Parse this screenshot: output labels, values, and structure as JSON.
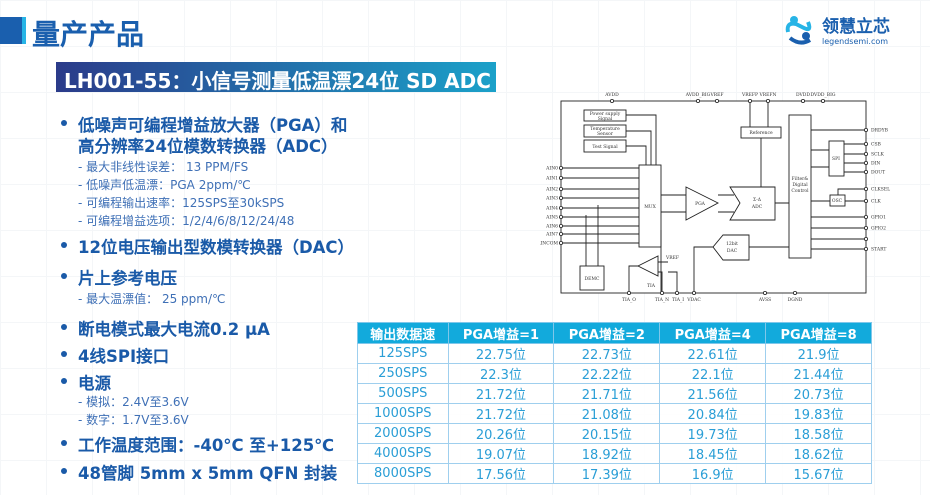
{
  "header": {
    "title": "量产产品",
    "subtitle": "LH001-55：小信号测量低温漂24位 SD ADC"
  },
  "logo": {
    "name": "领慧立芯",
    "url": "legendsemi.com",
    "colors": [
      "#1a5fae",
      "#27b4e6"
    ]
  },
  "bullets": [
    {
      "text": "低噪声可编程增益放大器（PGA）和",
      "cont": "高分辨率24位模数转换器（ADC）",
      "subs": [
        "- 最大非线性误差： 13 PPM/FS",
        "- 低噪声低温漂：PGA 2ppm/℃",
        "- 可编程输出速率：125SPS至30kSPS",
        "- 可编程增益选项：1/2/4/6/8/12/24/48"
      ]
    },
    {
      "text": "12位电压输出型数模转换器（DAC）"
    },
    {
      "text": "片上参考电压",
      "subs": [
        "- 最大温漂值： 25 ppm/℃"
      ]
    },
    {
      "text": "断电模式最大电流0.2 µA"
    },
    {
      "text": "4线SPI接口"
    },
    {
      "text": "电源",
      "subs": [
        "- 模拟：2.4V至3.6V",
        "- 数字：1.7V至3.6V"
      ]
    },
    {
      "text": "工作温度范围：-40°C 至+125℃"
    },
    {
      "text": "48管脚 5mm x 5mm QFN 封装"
    }
  ],
  "diagram": {
    "top_pins": [
      "AVDD",
      "AVDD_BIG",
      "VREF",
      "VREFP",
      "VREFN",
      "DVDD",
      "DVDD_BIG"
    ],
    "inputs": [
      "AIN0",
      "AIN1",
      "AIN2",
      "AIN3",
      "AIN4",
      "AIN5",
      "AIN6",
      "AIN7",
      "AINCOM"
    ],
    "blocks": {
      "power": "Power supply",
      "power2": "Signal",
      "temp": "Temperature",
      "temp2": "Sensor",
      "test": "Test Signal",
      "mux": "MUX",
      "pga": "PGA",
      "adc": "Σ-Δ",
      "adc2": "ADC",
      "ref": "Reference",
      "filter": "Filter&",
      "filter2": "Digital",
      "filter3": "Control",
      "spi": "SPI",
      "osc": "OSC",
      "dac": "12bit",
      "dac2": "DAC",
      "tia": "TIA",
      "demc": "DEMC",
      "vref": "VREF"
    },
    "right_pins": [
      "DRDYB",
      "CSB",
      "SCLK",
      "DIN",
      "DOUT",
      "CLKSEL",
      "CLK",
      "GPIO1",
      "GPIO2",
      "",
      "START"
    ],
    "bottom_pins": [
      "TIA_O",
      "TIA_N",
      "TIA_I",
      "VDAC",
      "AVSS",
      "DGND"
    ]
  },
  "table": {
    "headers": [
      "输出数据速",
      "PGA增益=1",
      "PGA增益=2",
      "PGA增益=4",
      "PGA增益=8"
    ],
    "rows": [
      [
        "125SPS",
        "22.75位",
        "22.73位",
        "22.61位",
        "21.9位"
      ],
      [
        "250SPS",
        "22.3位",
        "22.22位",
        "22.1位",
        "21.44位"
      ],
      [
        "500SPS",
        "21.72位",
        "21.71位",
        "21.56位",
        "20.73位"
      ],
      [
        "1000SPS",
        "21.72位",
        "21.08位",
        "20.84位",
        "19.83位"
      ],
      [
        "2000SPS",
        "20.26位",
        "20.15位",
        "19.73位",
        "18.58位"
      ],
      [
        "4000SPS",
        "19.07位",
        "18.92位",
        "18.45位",
        "18.62位"
      ],
      [
        "8000SPS",
        "17.56位",
        "17.39位",
        "16.9位",
        "15.67位"
      ]
    ]
  }
}
